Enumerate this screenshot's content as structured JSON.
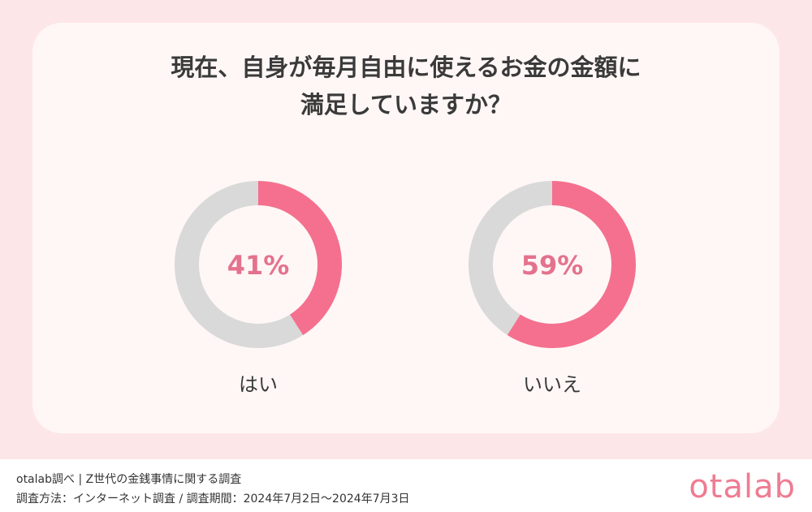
{
  "chart_data": {
    "type": "pie",
    "title": [
      "現在、自身が毎月自由に使えるお金の金額に",
      "満足していますか？"
    ],
    "charts": [
      {
        "label": "はい",
        "value": 41,
        "value_label": "41%"
      },
      {
        "label": "いいえ",
        "value": 59,
        "value_label": "59%"
      }
    ],
    "colors": {
      "filled": "#f5708e",
      "rest": "#d9d9d9",
      "percent_text": "#e4728d"
    }
  },
  "footer": {
    "line1": "otalab調べ | Z世代の金銭事情に関する調査",
    "line2": "調査方法：インターネット調査 / 調査期間：2024年7月2日〜2024年7月3日"
  },
  "logo": "otalab"
}
